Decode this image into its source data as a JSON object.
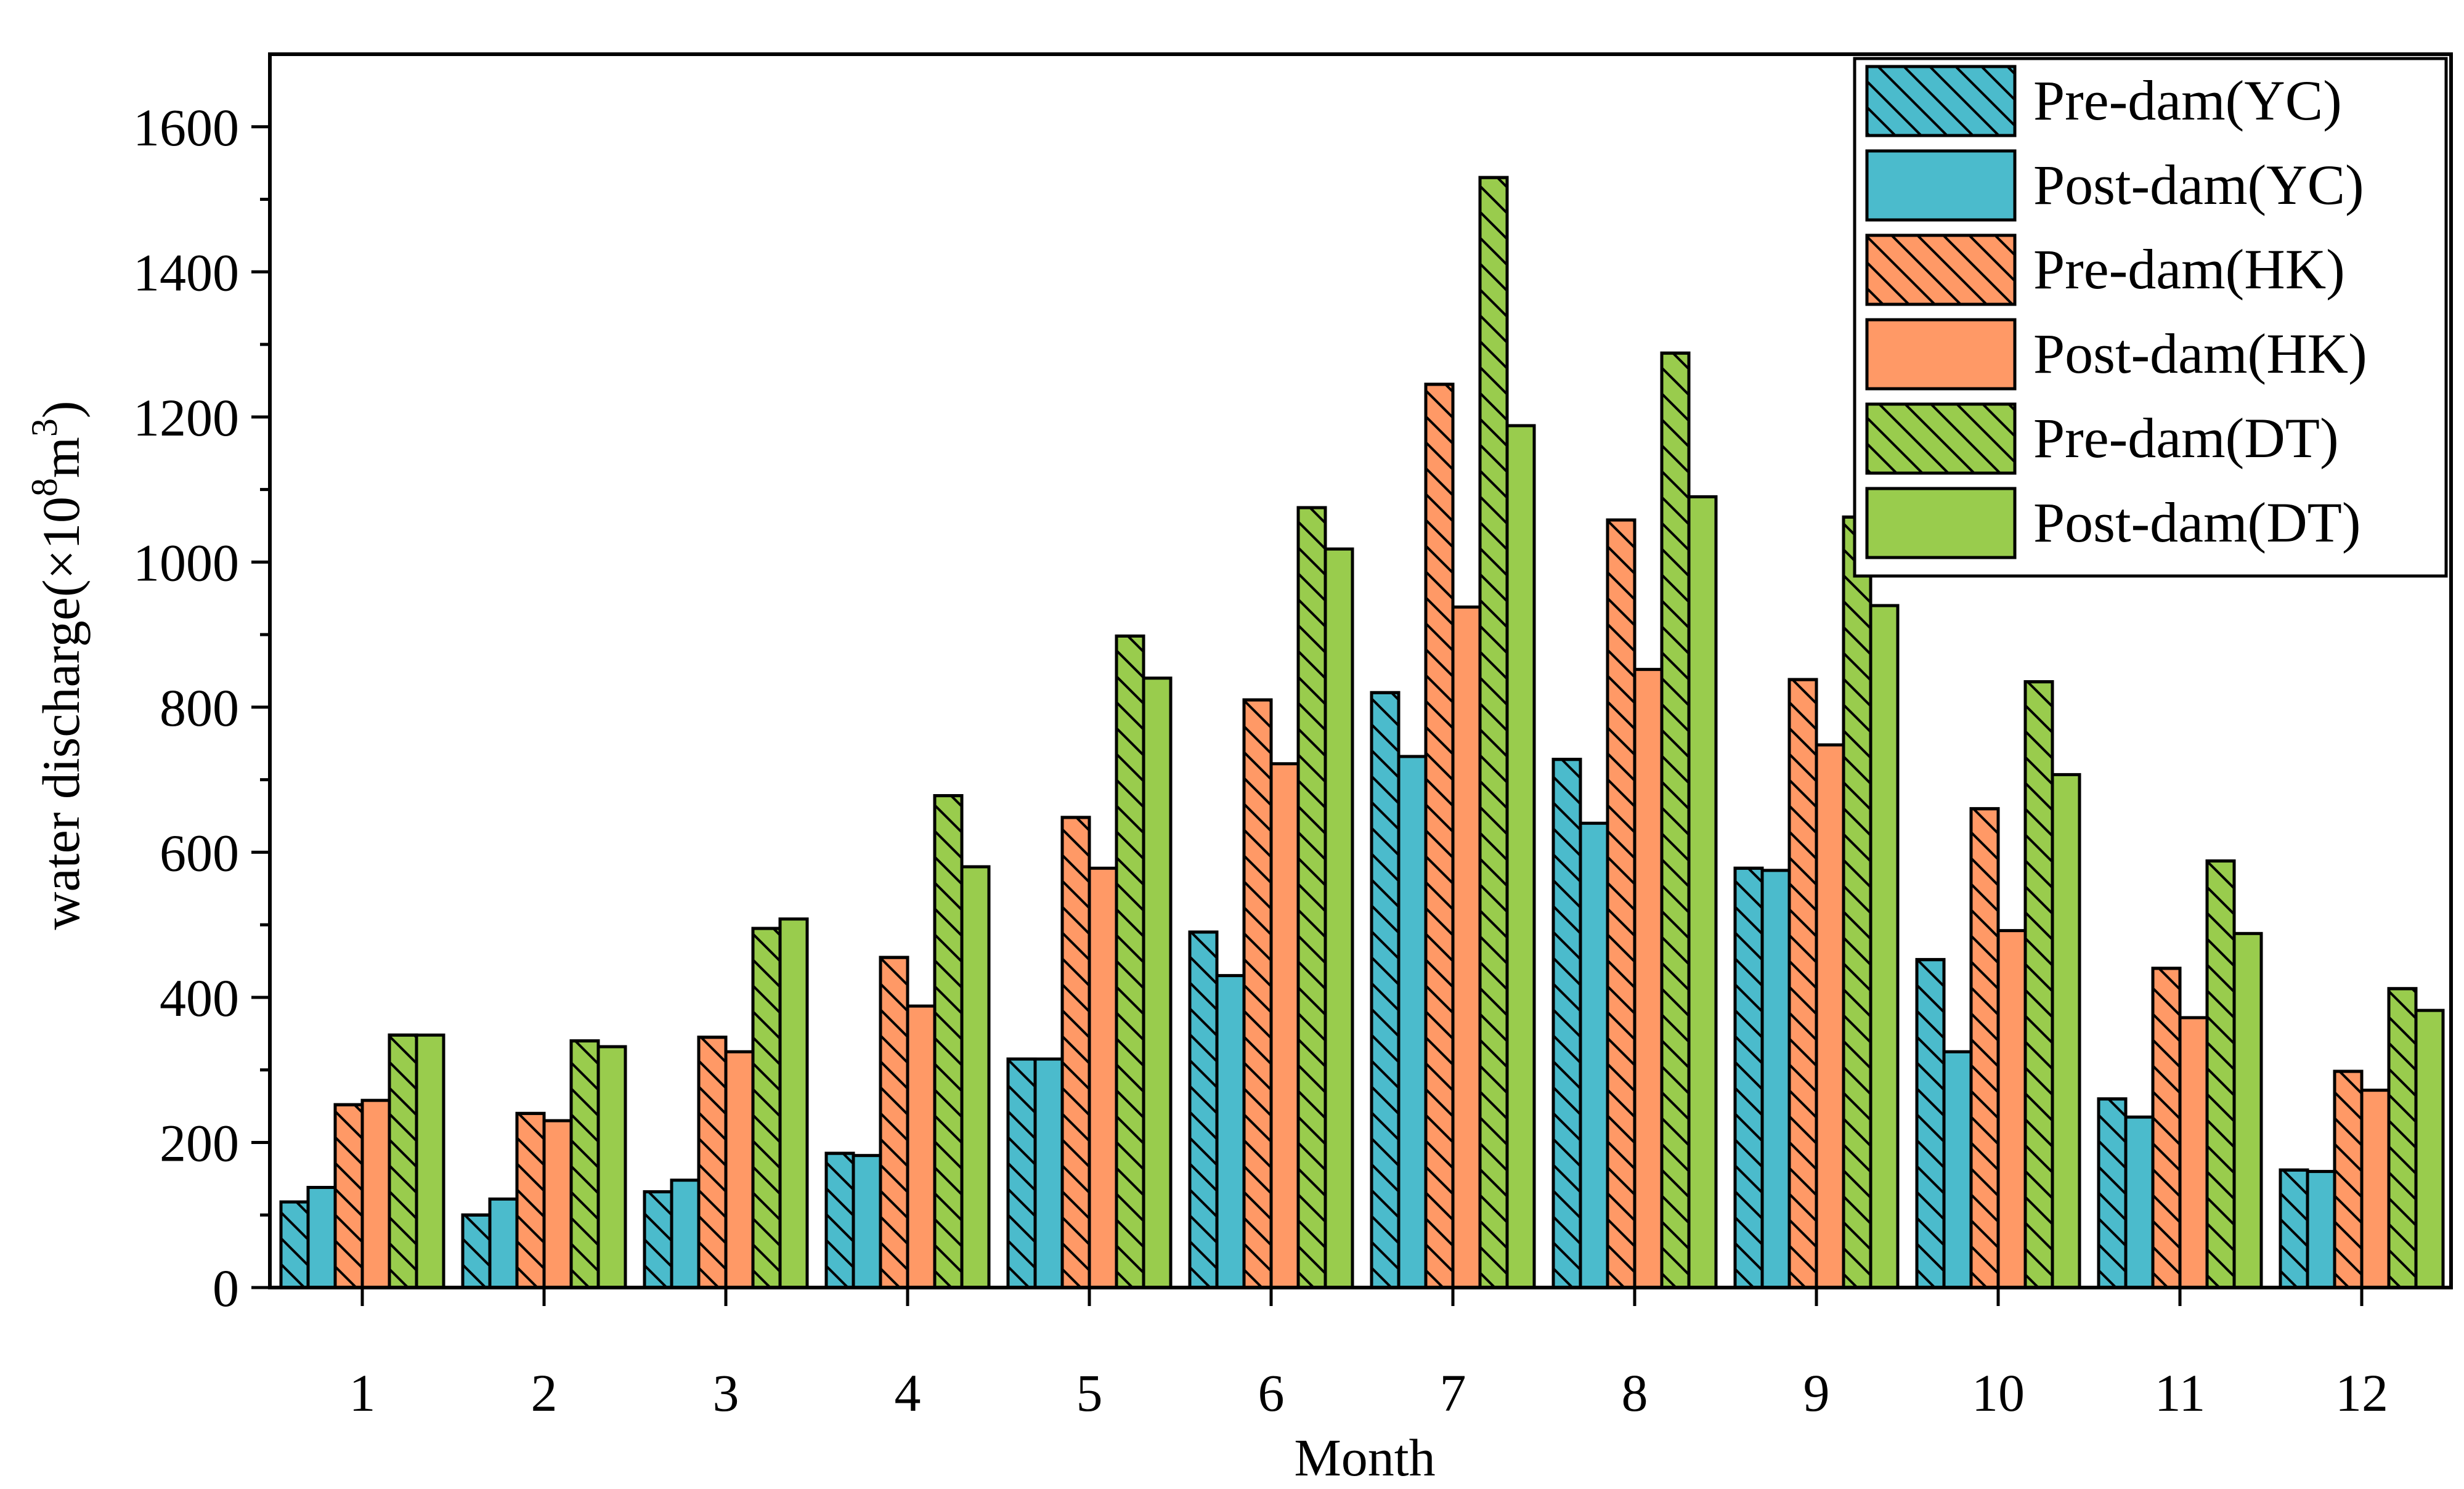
{
  "chart_data": {
    "type": "bar",
    "xlabel": "Month",
    "ylabel_main": "water discharge(×10",
    "ylabel_exp1": "8",
    "ylabel_mid": "m",
    "ylabel_exp2": "3",
    "ylabel_close": ")",
    "ylim": [
      0,
      1700
    ],
    "yticks": [
      0,
      200,
      400,
      600,
      800,
      1000,
      1200,
      1400,
      1600
    ],
    "categories": [
      "1",
      "2",
      "3",
      "4",
      "5",
      "6",
      "7",
      "8",
      "9",
      "10",
      "11",
      "12"
    ],
    "series": [
      {
        "name": "Pre-dam(YC)",
        "color": "#4BBBCC",
        "hatch": true,
        "values": [
          118,
          100,
          132,
          185,
          315,
          490,
          820,
          728,
          578,
          452,
          260,
          162
        ]
      },
      {
        "name": "Post-dam(YC)",
        "color": "#4BBBCC",
        "hatch": false,
        "values": [
          138,
          122,
          148,
          182,
          315,
          430,
          732,
          640,
          575,
          325,
          235,
          160
        ]
      },
      {
        "name": "Pre-dam(HK)",
        "color": "#FF9966",
        "hatch": true,
        "values": [
          252,
          240,
          345,
          455,
          648,
          810,
          1245,
          1058,
          838,
          660,
          440,
          298
        ]
      },
      {
        "name": "Post-dam(HK)",
        "color": "#FF9966",
        "hatch": false,
        "values": [
          258,
          230,
          325,
          388,
          578,
          722,
          938,
          852,
          748,
          492,
          372,
          272
        ]
      },
      {
        "name": "Pre-dam(DT)",
        "color": "#99CC4D",
        "hatch": true,
        "values": [
          348,
          340,
          495,
          678,
          898,
          1075,
          1530,
          1288,
          1062,
          835,
          588,
          412
        ]
      },
      {
        "name": "Post-dam(DT)",
        "color": "#99CC4D",
        "hatch": false,
        "values": [
          348,
          332,
          508,
          580,
          840,
          1018,
          1188,
          1090,
          940,
          707,
          488,
          382
        ]
      }
    ],
    "legend_position": "top-right"
  }
}
